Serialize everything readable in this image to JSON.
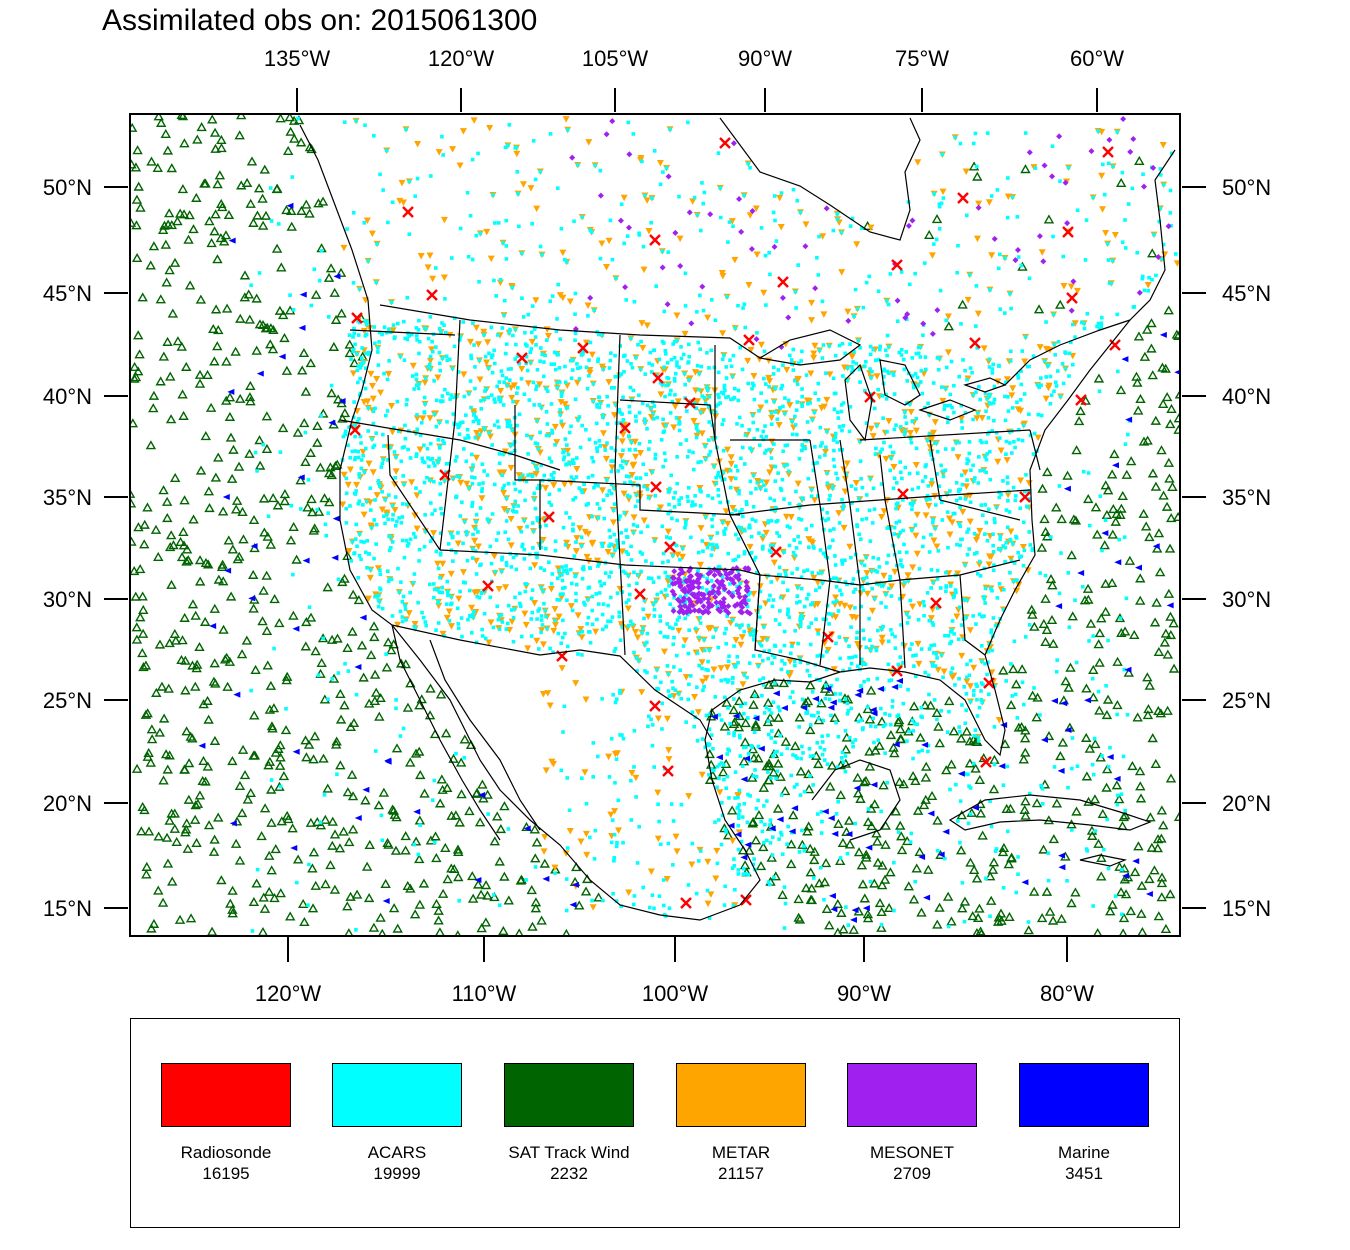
{
  "title": "Assimilated obs on: 2015061300",
  "top_axis_labels": [
    "135°W",
    "120°W",
    "105°W",
    "90°W",
    "75°W",
    "60°W"
  ],
  "bottom_axis_labels": [
    "120°W",
    "110°W",
    "100°W",
    "90°W",
    "80°W"
  ],
  "lat_labels": [
    "50°N",
    "45°N",
    "40°N",
    "35°N",
    "30°N",
    "25°N",
    "20°N",
    "15°N"
  ],
  "legend": [
    {
      "name": "Radiosonde",
      "count": "16195",
      "color": "#ff0000",
      "marker": "x-cross"
    },
    {
      "name": "ACARS",
      "count": "19999",
      "color": "#00ffff",
      "marker": "square-dot"
    },
    {
      "name": "SAT Track Wind",
      "count": "2232",
      "color": "#006400",
      "marker": "triangle-up-outline"
    },
    {
      "name": "METAR",
      "count": "21157",
      "color": "#ffa500",
      "marker": "triangle-down"
    },
    {
      "name": "MESONET",
      "count": "2709",
      "color": "#a020f0",
      "marker": "diamond"
    },
    {
      "name": "Marine",
      "count": "3451",
      "color": "#0000ff",
      "marker": "triangle-left"
    }
  ]
}
